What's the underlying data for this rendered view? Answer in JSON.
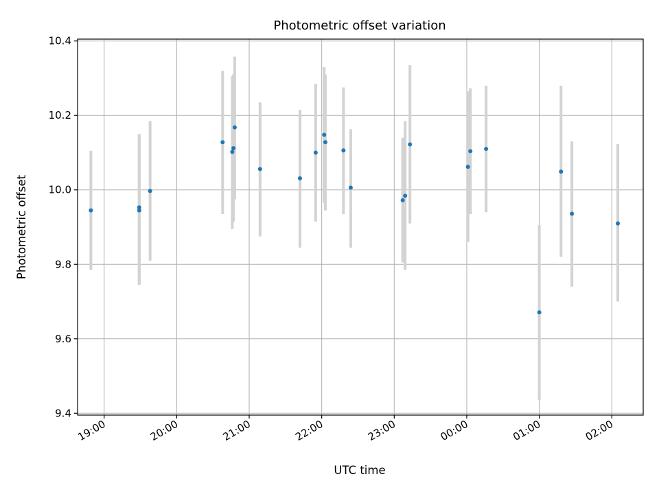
{
  "chart_data": {
    "type": "scatter",
    "title": "Photometric offset variation",
    "xlabel": "UTC time",
    "ylabel": "Photometric offset",
    "x_axis_kind": "time",
    "x_range": [
      "18:38",
      "02:26"
    ],
    "x_ticks": [
      "19:00",
      "20:00",
      "21:00",
      "22:00",
      "23:00",
      "00:00",
      "01:00",
      "02:00"
    ],
    "ylim": [
      9.395,
      10.405
    ],
    "y_ticks": [
      9.4,
      9.6,
      9.8,
      10.0,
      10.2,
      10.4
    ],
    "y_tick_labels": [
      "9.4",
      "9.6",
      "9.8",
      "10.0",
      "10.2",
      "10.4"
    ],
    "grid": true,
    "point_color": "#1f77b4",
    "errorbar_color": "#d3d3d3",
    "points": [
      {
        "x": "18:49",
        "y": 9.945,
        "yerr_low": 9.785,
        "yerr_high": 10.105
      },
      {
        "x": "19:29",
        "y": 9.945,
        "yerr_low": 9.745,
        "yerr_high": 10.15
      },
      {
        "x": "19:29",
        "y": 9.953,
        "yerr_low": 9.745,
        "yerr_high": 10.15
      },
      {
        "x": "19:38",
        "y": 9.997,
        "yerr_low": 9.81,
        "yerr_high": 10.185
      },
      {
        "x": "20:38",
        "y": 10.128,
        "yerr_low": 9.935,
        "yerr_high": 10.32
      },
      {
        "x": "20:46",
        "y": 10.102,
        "yerr_low": 9.895,
        "yerr_high": 10.305
      },
      {
        "x": "20:47",
        "y": 10.112,
        "yerr_low": 9.915,
        "yerr_high": 10.31
      },
      {
        "x": "20:48",
        "y": 10.168,
        "yerr_low": 9.975,
        "yerr_high": 10.358
      },
      {
        "x": "21:09",
        "y": 10.056,
        "yerr_low": 9.875,
        "yerr_high": 10.235
      },
      {
        "x": "21:42",
        "y": 10.031,
        "yerr_low": 9.845,
        "yerr_high": 10.215
      },
      {
        "x": "21:55",
        "y": 10.1,
        "yerr_low": 9.915,
        "yerr_high": 10.285
      },
      {
        "x": "22:02",
        "y": 10.148,
        "yerr_low": 9.965,
        "yerr_high": 10.33
      },
      {
        "x": "22:03",
        "y": 10.128,
        "yerr_low": 9.945,
        "yerr_high": 10.31
      },
      {
        "x": "22:18",
        "y": 10.106,
        "yerr_low": 9.935,
        "yerr_high": 10.275
      },
      {
        "x": "22:24",
        "y": 10.006,
        "yerr_low": 9.845,
        "yerr_high": 10.163
      },
      {
        "x": "23:07",
        "y": 9.972,
        "yerr_low": 9.805,
        "yerr_high": 10.14
      },
      {
        "x": "23:09",
        "y": 9.984,
        "yerr_low": 9.785,
        "yerr_high": 10.185
      },
      {
        "x": "23:13",
        "y": 10.122,
        "yerr_low": 9.91,
        "yerr_high": 10.335
      },
      {
        "x": "00:01",
        "y": 10.062,
        "yerr_low": 9.86,
        "yerr_high": 10.265
      },
      {
        "x": "00:03",
        "y": 10.104,
        "yerr_low": 9.935,
        "yerr_high": 10.273
      },
      {
        "x": "00:16",
        "y": 10.11,
        "yerr_low": 9.94,
        "yerr_high": 10.28
      },
      {
        "x": "01:00",
        "y": 9.671,
        "yerr_low": 9.435,
        "yerr_high": 9.905
      },
      {
        "x": "01:18",
        "y": 10.049,
        "yerr_low": 9.82,
        "yerr_high": 10.28
      },
      {
        "x": "01:27",
        "y": 9.936,
        "yerr_low": 9.74,
        "yerr_high": 10.13
      },
      {
        "x": "02:05",
        "y": 9.91,
        "yerr_low": 9.7,
        "yerr_high": 10.123
      }
    ]
  }
}
